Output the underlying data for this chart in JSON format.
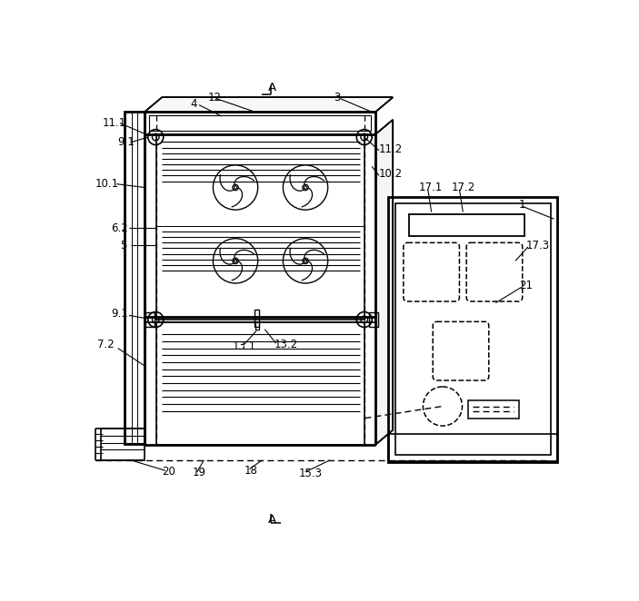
{
  "bg_color": "#ffffff",
  "line_color": "#000000",
  "fig_width": 7.03,
  "fig_height": 6.62,
  "dpi": 100
}
